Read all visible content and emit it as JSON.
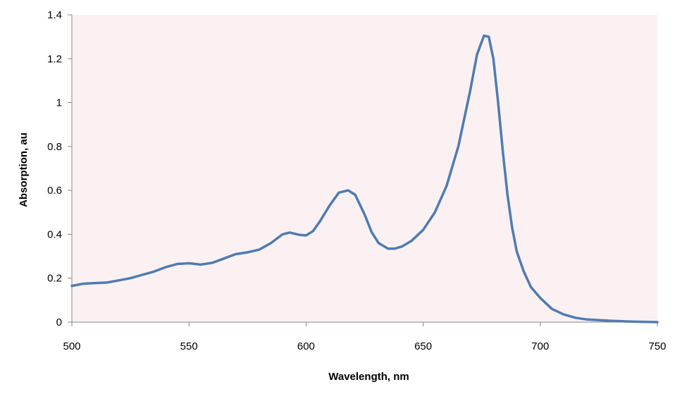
{
  "chart_data": {
    "type": "line",
    "title": "",
    "xlabel": "Wavelength, nm",
    "ylabel": "Absorption, au",
    "xlim": [
      500,
      750
    ],
    "ylim": [
      0,
      1.4
    ],
    "x_ticks": [
      500,
      550,
      600,
      650,
      700,
      750
    ],
    "x_tick_labels": [
      "500",
      "550",
      "600",
      "650",
      "700",
      "750"
    ],
    "y_ticks": [
      0,
      0.2,
      0.4,
      0.6,
      0.8,
      1.0,
      1.2,
      1.4
    ],
    "y_tick_labels": [
      "0",
      "0.2",
      "0.4",
      "0.6",
      "0.8",
      "1",
      "1.2",
      "1.4"
    ],
    "grid": false,
    "legend": "none",
    "plot_background": "#fbf1f3",
    "series": [
      {
        "color": "#4f7bb2",
        "x": [
          500,
          505,
          510,
          515,
          520,
          525,
          530,
          535,
          540,
          545,
          550,
          555,
          560,
          565,
          570,
          575,
          580,
          585,
          590,
          593,
          597,
          600,
          603,
          606,
          610,
          614,
          618,
          621,
          625,
          628,
          631,
          635,
          638,
          641,
          645,
          650,
          655,
          660,
          665,
          670,
          673,
          676,
          678,
          680,
          682,
          684,
          686,
          688,
          690,
          693,
          696,
          700,
          705,
          710,
          715,
          720,
          730,
          740,
          750
        ],
        "y": [
          0.165,
          0.175,
          0.178,
          0.18,
          0.19,
          0.2,
          0.215,
          0.23,
          0.25,
          0.265,
          0.268,
          0.262,
          0.27,
          0.29,
          0.31,
          0.318,
          0.33,
          0.36,
          0.4,
          0.408,
          0.398,
          0.395,
          0.415,
          0.46,
          0.53,
          0.59,
          0.6,
          0.58,
          0.49,
          0.41,
          0.36,
          0.335,
          0.335,
          0.345,
          0.37,
          0.42,
          0.5,
          0.62,
          0.8,
          1.05,
          1.22,
          1.305,
          1.3,
          1.2,
          1.0,
          0.78,
          0.58,
          0.43,
          0.32,
          0.23,
          0.16,
          0.11,
          0.06,
          0.035,
          0.02,
          0.012,
          0.006,
          0.002,
          0.0
        ]
      }
    ]
  }
}
